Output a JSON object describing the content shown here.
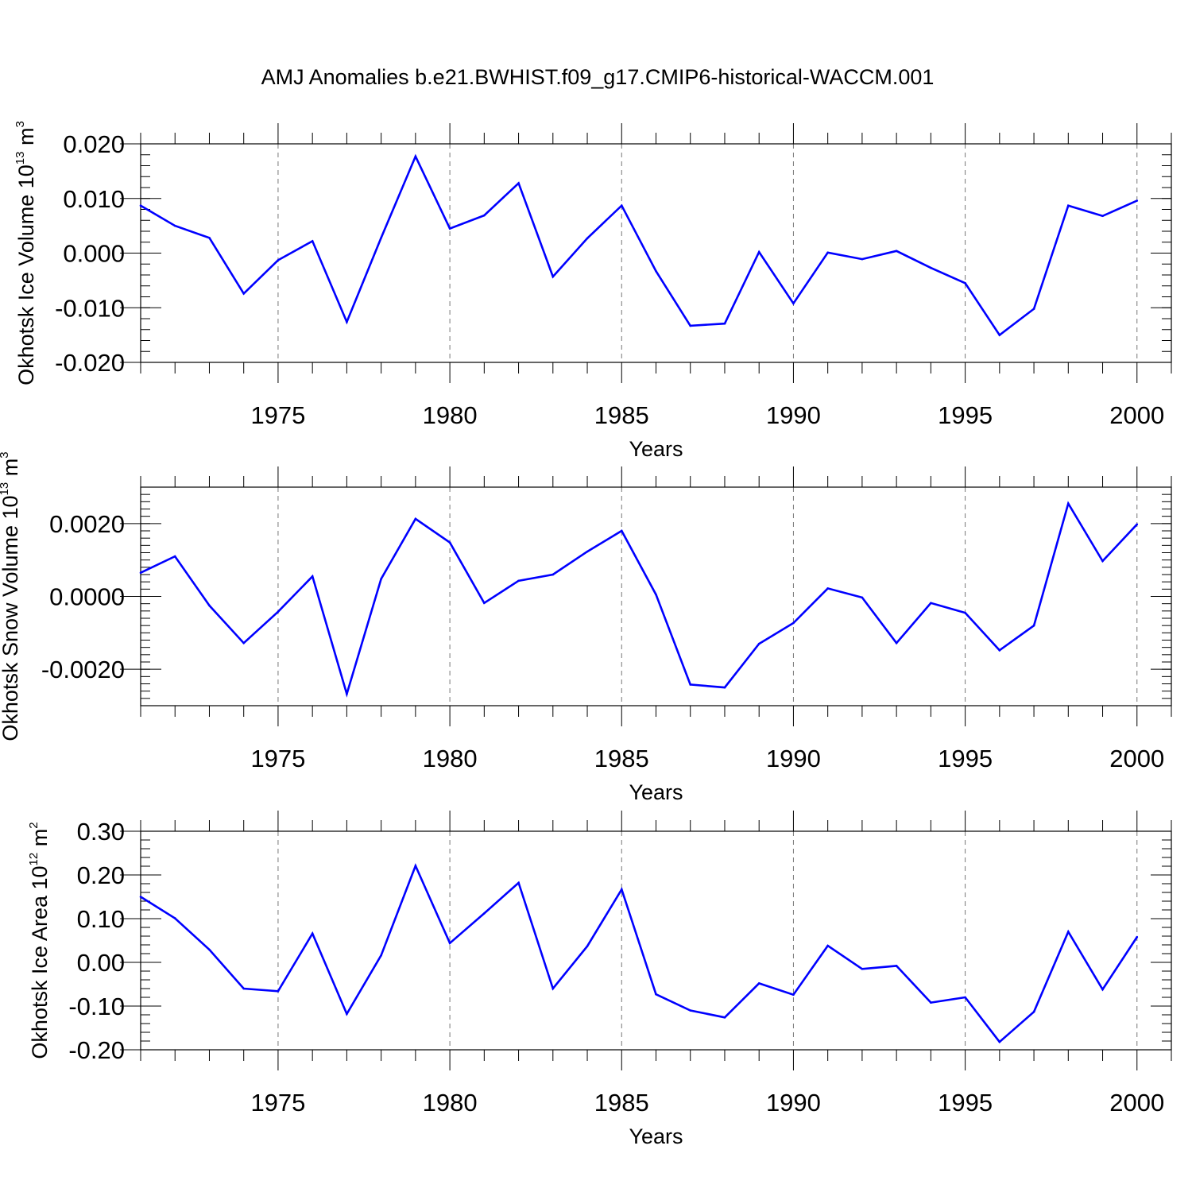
{
  "title": "AMJ Anomalies b.e21.BWHIST.f09_g17.CMIP6-historical-WACCM.001",
  "colors": {
    "line": "#0000ff",
    "axis": "#000000",
    "grid": "#777777"
  },
  "chart_data": [
    {
      "type": "line",
      "ylabel": "Okhotsk Ice Volume 10",
      "ylabel_exp": "13",
      "ylabel_unit": " m",
      "ylabel_unit_exp": "3",
      "xlabel": "Years",
      "xlim": [
        1971,
        2001
      ],
      "ylim": [
        -0.02,
        0.02
      ],
      "x_ticks": [
        "1975",
        "1980",
        "1985",
        "1990",
        "1995",
        "2000"
      ],
      "y_ticks": [
        "0.020",
        "0.010",
        "0.000",
        "-0.010",
        "-0.020"
      ],
      "y_tick_values": [
        0.02,
        0.01,
        0.0,
        -0.01,
        -0.02
      ],
      "grid": "vertical dashed at major x ticks",
      "x": [
        1971,
        1972,
        1973,
        1974,
        1975,
        1976,
        1977,
        1978,
        1979,
        1980,
        1981,
        1982,
        1983,
        1984,
        1985,
        1986,
        1987,
        1988,
        1989,
        1990,
        1991,
        1992,
        1993,
        1994,
        1995,
        1996,
        1997,
        1998,
        1999,
        2000
      ],
      "series": [
        {
          "values": [
            0.0087,
            0.005,
            0.0028,
            -0.0074,
            -0.0013,
            0.0022,
            -0.0126,
            0.0028,
            0.0177,
            0.0045,
            0.0069,
            0.0128,
            -0.0043,
            0.0027,
            0.0087,
            -0.0033,
            -0.0133,
            -0.0129,
            0.0002,
            -0.0092,
            0.0001,
            -0.0011,
            0.0004,
            -0.0027,
            -0.0055,
            -0.015,
            -0.0102,
            0.0087,
            0.0068,
            0.0096
          ]
        }
      ]
    },
    {
      "type": "line",
      "ylabel": "Okhotsk Snow Volume 10",
      "ylabel_exp": "13",
      "ylabel_unit": " m",
      "ylabel_unit_exp": "3",
      "xlabel": "Years",
      "xlim": [
        1971,
        2001
      ],
      "ylim": [
        -0.003,
        0.003
      ],
      "x_ticks": [
        "1975",
        "1980",
        "1985",
        "1990",
        "1995",
        "2000"
      ],
      "y_ticks": [
        "0.0020",
        "0.0000",
        "-0.0020"
      ],
      "y_tick_values": [
        0.002,
        0.0,
        -0.002
      ],
      "grid": "vertical dashed at major x ticks",
      "x": [
        1971,
        1972,
        1973,
        1974,
        1975,
        1976,
        1977,
        1978,
        1979,
        1980,
        1981,
        1982,
        1983,
        1984,
        1985,
        1986,
        1987,
        1988,
        1989,
        1990,
        1991,
        1992,
        1993,
        1994,
        1995,
        1996,
        1997,
        1998,
        1999,
        2000
      ],
      "series": [
        {
          "values": [
            0.00065,
            0.0011,
            -0.00025,
            -0.00128,
            -0.00042,
            0.00055,
            -0.00268,
            0.00048,
            0.00213,
            0.00148,
            -0.00018,
            0.00043,
            0.0006,
            0.00123,
            0.0018,
            5e-05,
            -0.00242,
            -0.0025,
            -0.0013,
            -0.00073,
            0.00022,
            -3e-05,
            -0.00128,
            -0.00018,
            -0.00045,
            -0.00148,
            -0.0008,
            0.00255,
            0.00097,
            0.00198
          ]
        }
      ]
    },
    {
      "type": "line",
      "ylabel": "Okhotsk Ice Area 10",
      "ylabel_exp": "12",
      "ylabel_unit": " m",
      "ylabel_unit_exp": "2",
      "xlabel": "Years",
      "xlim": [
        1971,
        2001
      ],
      "ylim": [
        -0.2,
        0.3
      ],
      "x_ticks": [
        "1975",
        "1980",
        "1985",
        "1990",
        "1995",
        "2000"
      ],
      "y_ticks": [
        "0.30",
        "0.20",
        "0.10",
        "0.00",
        "-0.10",
        "-0.20"
      ],
      "y_tick_values": [
        0.3,
        0.2,
        0.1,
        0.0,
        -0.1,
        -0.2
      ],
      "grid": "vertical dashed at major x ticks",
      "x": [
        1971,
        1972,
        1973,
        1974,
        1975,
        1976,
        1977,
        1978,
        1979,
        1980,
        1981,
        1982,
        1983,
        1984,
        1985,
        1986,
        1987,
        1988,
        1989,
        1990,
        1991,
        1992,
        1993,
        1994,
        1995,
        1996,
        1997,
        1998,
        1999,
        2000
      ],
      "series": [
        {
          "values": [
            0.15,
            0.101,
            0.029,
            -0.06,
            -0.066,
            0.066,
            -0.118,
            0.016,
            0.221,
            0.044,
            0.112,
            0.182,
            -0.06,
            0.037,
            0.167,
            -0.073,
            -0.11,
            -0.126,
            -0.048,
            -0.074,
            0.038,
            -0.015,
            -0.008,
            -0.092,
            -0.08,
            -0.182,
            -0.113,
            0.07,
            -0.062,
            0.058
          ]
        }
      ]
    }
  ]
}
